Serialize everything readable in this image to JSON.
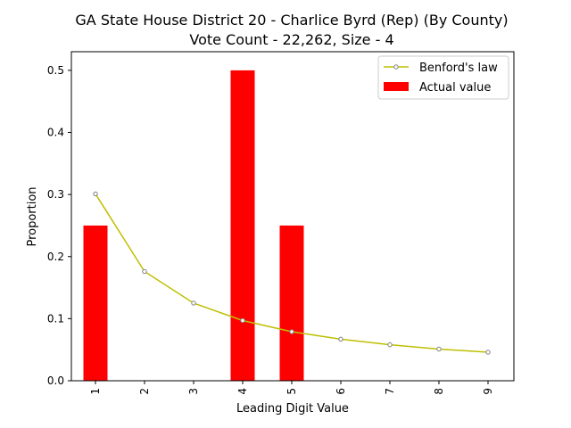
{
  "chart_data": {
    "type": "bar",
    "title": "GA State House District 20 - Charlice Byrd (Rep) (By County)",
    "subtitle": "Vote Count - 22,262, Size - 4",
    "xlabel": "Leading Digit Value",
    "ylabel": "Proportion",
    "categories": [
      "1",
      "2",
      "3",
      "4",
      "5",
      "6",
      "7",
      "8",
      "9"
    ],
    "ylim": [
      0,
      0.53
    ],
    "yticks": [
      "0.0",
      "0.1",
      "0.2",
      "0.3",
      "0.4",
      "0.5"
    ],
    "ytick_values": [
      0,
      0.1,
      0.2,
      0.3,
      0.4,
      0.5
    ],
    "grid": false,
    "legend_position": "top-right",
    "series": [
      {
        "name": "Benford's law",
        "type": "line",
        "color": "#bfbf00",
        "values": [
          0.301,
          0.176,
          0.125,
          0.097,
          0.079,
          0.067,
          0.058,
          0.051,
          0.046
        ]
      },
      {
        "name": "Actual value",
        "type": "bar",
        "color": "#ff0000",
        "values": [
          0.25,
          0.0,
          0.0,
          0.5,
          0.25,
          0.0,
          0.0,
          0.0,
          0.0
        ]
      }
    ]
  }
}
